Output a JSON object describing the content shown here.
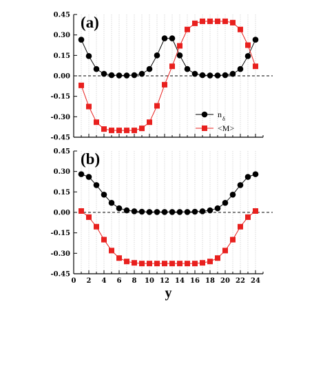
{
  "chart_data": [
    {
      "type": "line",
      "panel_label": "(a)",
      "xlim": [
        0,
        25
      ],
      "ylim": [
        -0.45,
        0.45
      ],
      "yticks": [
        "0.45",
        "0.30",
        "0.15",
        "0.00",
        "-0.15",
        "-0.30",
        "-0.45"
      ],
      "reference_line": {
        "y": 0.0,
        "style": "dashed"
      },
      "vertical_grid": true,
      "legend": {
        "placement": "right-middle"
      },
      "series": [
        {
          "name": "n",
          "name_sub": "δ",
          "color": "#000000",
          "marker": "circle",
          "x": [
            1,
            2,
            3,
            4,
            5,
            6,
            7,
            8,
            9,
            10,
            11,
            12,
            13,
            14,
            15,
            16,
            17,
            18,
            19,
            20,
            21,
            22,
            23,
            24
          ],
          "values": [
            0.265,
            0.145,
            0.05,
            0.015,
            0.005,
            0.003,
            0.003,
            0.005,
            0.015,
            0.05,
            0.15,
            0.275,
            0.275,
            0.15,
            0.05,
            0.015,
            0.005,
            0.003,
            0.003,
            0.005,
            0.015,
            0.05,
            0.145,
            0.265
          ]
        },
        {
          "name": "<M>",
          "color": "#e8201e",
          "marker": "square",
          "x": [
            1,
            2,
            3,
            4,
            5,
            6,
            7,
            8,
            9,
            10,
            11,
            12,
            13,
            14,
            15,
            16,
            17,
            18,
            19,
            20,
            21,
            22,
            23,
            24
          ],
          "values": [
            -0.07,
            -0.225,
            -0.34,
            -0.39,
            -0.4,
            -0.4,
            -0.4,
            -0.4,
            -0.385,
            -0.34,
            -0.22,
            -0.065,
            0.07,
            0.22,
            0.34,
            0.385,
            0.4,
            0.4,
            0.4,
            0.4,
            0.39,
            0.34,
            0.225,
            0.07
          ]
        }
      ]
    },
    {
      "type": "line",
      "panel_label": "(b)",
      "xlim": [
        0,
        25
      ],
      "ylim": [
        -0.45,
        0.45
      ],
      "xticks": [
        "0",
        "2",
        "4",
        "6",
        "8",
        "10",
        "12",
        "14",
        "16",
        "18",
        "20",
        "22",
        "24"
      ],
      "yticks": [
        "0.45",
        "0.30",
        "0.15",
        "0.00",
        "-0.15",
        "-0.30",
        "-0.45"
      ],
      "xlabel": "y",
      "reference_line": {
        "y": 0.0,
        "style": "dashed"
      },
      "vertical_grid": true,
      "series": [
        {
          "color": "#000000",
          "marker": "circle",
          "x": [
            1,
            2,
            3,
            4,
            5,
            6,
            7,
            8,
            9,
            10,
            11,
            12,
            13,
            14,
            15,
            16,
            17,
            18,
            19,
            20,
            21,
            22,
            23,
            24
          ],
          "values": [
            0.28,
            0.26,
            0.2,
            0.13,
            0.07,
            0.03,
            0.015,
            0.008,
            0.005,
            0.003,
            0.003,
            0.003,
            0.003,
            0.003,
            0.003,
            0.005,
            0.008,
            0.015,
            0.03,
            0.07,
            0.13,
            0.2,
            0.26,
            0.28
          ]
        },
        {
          "color": "#e8201e",
          "marker": "square",
          "x": [
            1,
            2,
            3,
            4,
            5,
            6,
            7,
            8,
            9,
            10,
            11,
            12,
            13,
            14,
            15,
            16,
            17,
            18,
            19,
            20,
            21,
            22,
            23,
            24
          ],
          "values": [
            0.01,
            -0.035,
            -0.105,
            -0.2,
            -0.28,
            -0.335,
            -0.36,
            -0.37,
            -0.375,
            -0.375,
            -0.375,
            -0.375,
            -0.375,
            -0.375,
            -0.375,
            -0.375,
            -0.37,
            -0.36,
            -0.335,
            -0.28,
            -0.2,
            -0.105,
            -0.035,
            0.01
          ]
        }
      ]
    }
  ]
}
